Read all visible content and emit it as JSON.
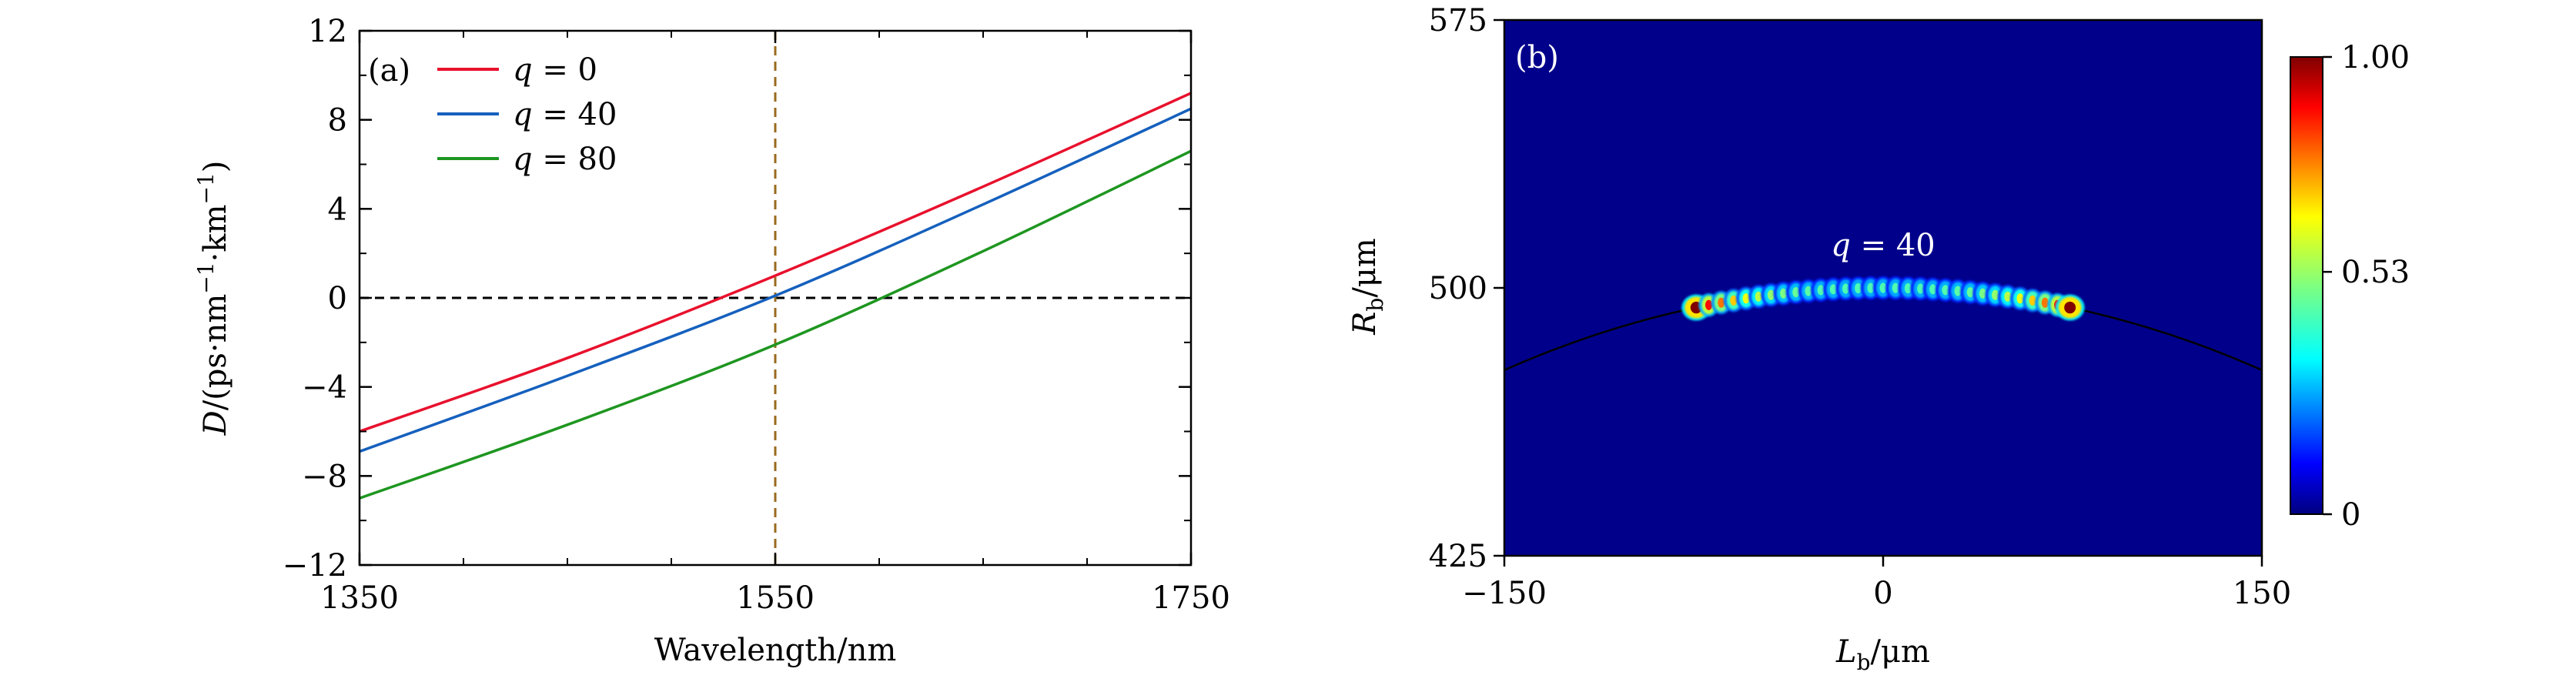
{
  "chart_data": [
    {
      "type": "line",
      "panel_label": "(a)",
      "xlabel": "Wavelength/nm",
      "ylabel": {
        "var": "D",
        "rest": "/(ps·nm",
        "sup1": "−1",
        "mid": "·km",
        "sup2": "−1",
        "close": ")"
      },
      "xlim": [
        1350,
        1750
      ],
      "ylim": [
        -12,
        12
      ],
      "xticks": [
        1350,
        1550,
        1750
      ],
      "yticks": [
        -12,
        -8,
        -4,
        0,
        4,
        8,
        12
      ],
      "ytick_labels": [
        "−12",
        "−8",
        "−4",
        "0",
        "4",
        "8",
        "12"
      ],
      "legend_position": "top-left",
      "series": [
        {
          "name_var": "q",
          "name_val": " = 0",
          "color": "#e8112d",
          "x": [
            1350,
            1450,
            1550,
            1650,
            1750
          ],
          "y": [
            -6.0,
            -2.7,
            1.0,
            5.0,
            9.2
          ]
        },
        {
          "name_var": "q",
          "name_val": " = 40",
          "color": "#1560bd",
          "x": [
            1350,
            1450,
            1550,
            1650,
            1750
          ],
          "y": [
            -6.9,
            -3.5,
            0.1,
            4.2,
            8.5
          ]
        },
        {
          "name_var": "q",
          "name_val": " = 80",
          "color": "#1e9620",
          "x": [
            1350,
            1450,
            1550,
            1650,
            1750
          ],
          "y": [
            -9.0,
            -5.7,
            -2.1,
            2.1,
            6.6
          ]
        }
      ],
      "reference_lines": {
        "horizontal_y": 0,
        "horizontal_color": "#000000",
        "vertical_x": 1550,
        "vertical_color": "#9a6a1e"
      }
    },
    {
      "type": "heatmap",
      "panel_label": "(b)",
      "xlabel": {
        "var": "L",
        "sub": "b",
        "rest": "/μm"
      },
      "ylabel": {
        "var": "R",
        "sub": "b",
        "rest": "/μm"
      },
      "xlim": [
        -150,
        150
      ],
      "ylim": [
        425,
        575
      ],
      "xticks": [
        -150,
        0,
        150
      ],
      "xtick_labels": [
        "−150",
        "0",
        "150"
      ],
      "yticks": [
        425,
        500,
        575
      ],
      "annotation": {
        "var": "q",
        "val": " = 40",
        "x": 0,
        "y": 511
      },
      "colorbar": {
        "min": 0,
        "max": 1.0,
        "tick_labels": [
          "0",
          "0.53",
          "1.00"
        ],
        "tick_values": [
          0,
          0.53,
          1.0
        ],
        "colormap": "jet"
      },
      "background_color": "#00008b",
      "arc": {
        "radius": 500,
        "color": "#000000"
      },
      "beads": {
        "count": 31,
        "lb_range": [
          -74,
          74
        ],
        "end_intensity": 1.0,
        "center_intensity": 0.45
      }
    }
  ]
}
